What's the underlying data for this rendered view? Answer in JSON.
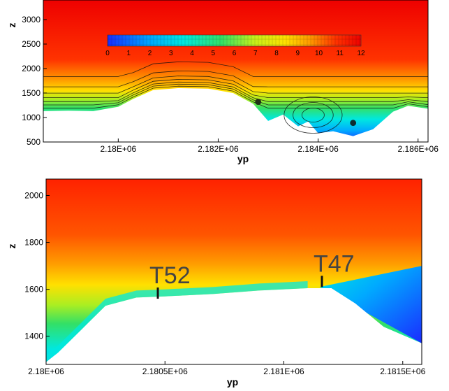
{
  "chart_data": [
    {
      "type": "heatmap",
      "description_of_field": "filled contour with streamlines over terrain",
      "xlabel": "yp",
      "ylabel": "z",
      "xlim": [
        2178500,
        2186200
      ],
      "ylim": [
        500,
        3400
      ],
      "x_ticks": [
        2180000,
        2182000,
        2184000,
        2186000
      ],
      "x_tick_labels": [
        "2.18E+06",
        "2.182E+06",
        "2.184E+06",
        "2.186E+06"
      ],
      "y_ticks": [
        500,
        1000,
        1500,
        2000,
        2500,
        3000
      ],
      "y_tick_labels": [
        "500",
        "1000",
        "1500",
        "2000",
        "2500",
        "3000"
      ],
      "colorbar": {
        "min": 0,
        "max": 12,
        "tick_labels": [
          "0",
          "1",
          "2",
          "3",
          "4",
          "5",
          "6",
          "7",
          "8",
          "9",
          "10",
          "11",
          "12"
        ],
        "colors": [
          "#1a2cff",
          "#00aaff",
          "#00e8e0",
          "#33e066",
          "#c6f01a",
          "#ffe000",
          "#ff9900",
          "#ff3300",
          "#ee0000"
        ]
      },
      "terrain": {
        "x": [
          2178500,
          2179000,
          2179500,
          2180000,
          2180300,
          2180700,
          2181200,
          2181800,
          2182300,
          2182700,
          2183000,
          2183300,
          2183600,
          2183800,
          2184000,
          2184300,
          2184700,
          2185100,
          2185500,
          2185800,
          2186200
        ],
        "z": [
          1130,
          1140,
          1130,
          1220,
          1380,
          1560,
          1600,
          1590,
          1500,
          1280,
          930,
          1060,
          820,
          920,
          680,
          720,
          620,
          760,
          1120,
          1240,
          1180
        ]
      }
    },
    {
      "type": "heatmap",
      "description_of_field": "filled contour zoom on ridge",
      "xlabel": "yp",
      "ylabel": "z",
      "xlim": [
        2180000,
        2181580
      ],
      "ylim": [
        1280,
        2070
      ],
      "x_ticks": [
        2180000,
        2180500,
        2181000,
        2181500
      ],
      "x_tick_labels": [
        "2.18E+06",
        "2.1805E+06",
        "2.181E+06",
        "2.1815E+06"
      ],
      "y_ticks": [
        1400,
        1600,
        1800,
        2000
      ],
      "y_tick_labels": [
        "1400",
        "1600",
        "1800",
        "2000"
      ],
      "terrain": {
        "x": [
          2180000,
          2180050,
          2180150,
          2180250,
          2180380,
          2180500,
          2180700,
          2180900,
          2181100,
          2181200,
          2181300,
          2181420,
          2181580
        ],
        "z": [
          1290,
          1330,
          1430,
          1530,
          1565,
          1570,
          1580,
          1595,
          1605,
          1605,
          1540,
          1440,
          1370
        ]
      },
      "annotations": [
        {
          "text": "T52",
          "x": 2180470,
          "z": 1560
        },
        {
          "text": "T47",
          "x": 2181160,
          "z": 1610
        }
      ]
    }
  ]
}
